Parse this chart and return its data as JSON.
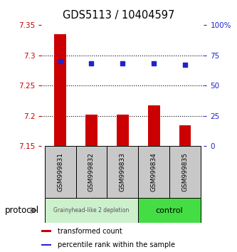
{
  "title": "GDS5113 / 10404597",
  "samples": [
    "GSM999831",
    "GSM999832",
    "GSM999833",
    "GSM999834",
    "GSM999835"
  ],
  "bar_values": [
    7.335,
    7.202,
    7.202,
    7.217,
    7.185
  ],
  "bar_bottom": 7.15,
  "percentile_values": [
    70.5,
    68.5,
    68.5,
    68.5,
    67.5
  ],
  "ylim": [
    7.15,
    7.35
  ],
  "y2lim": [
    0,
    100
  ],
  "yticks": [
    7.15,
    7.2,
    7.25,
    7.3,
    7.35
  ],
  "y2ticks": [
    0,
    25,
    50,
    75,
    100
  ],
  "bar_color": "#cc0000",
  "dot_color": "#2222cc",
  "group1_color": "#ccf0cc",
  "group2_color": "#44dd44",
  "group1_label": "Grainyhead-like 2 depletion",
  "group2_label": "control",
  "group1_indices": [
    0,
    1,
    2
  ],
  "group2_indices": [
    3,
    4
  ],
  "protocol_label": "protocol",
  "legend_bar_label": "transformed count",
  "legend_dot_label": "percentile rank within the sample",
  "left_tick_color": "#cc0000",
  "right_tick_color": "#2222cc",
  "sample_box_color": "#c8c8c8",
  "figsize": [
    3.33,
    3.54
  ],
  "dpi": 100
}
